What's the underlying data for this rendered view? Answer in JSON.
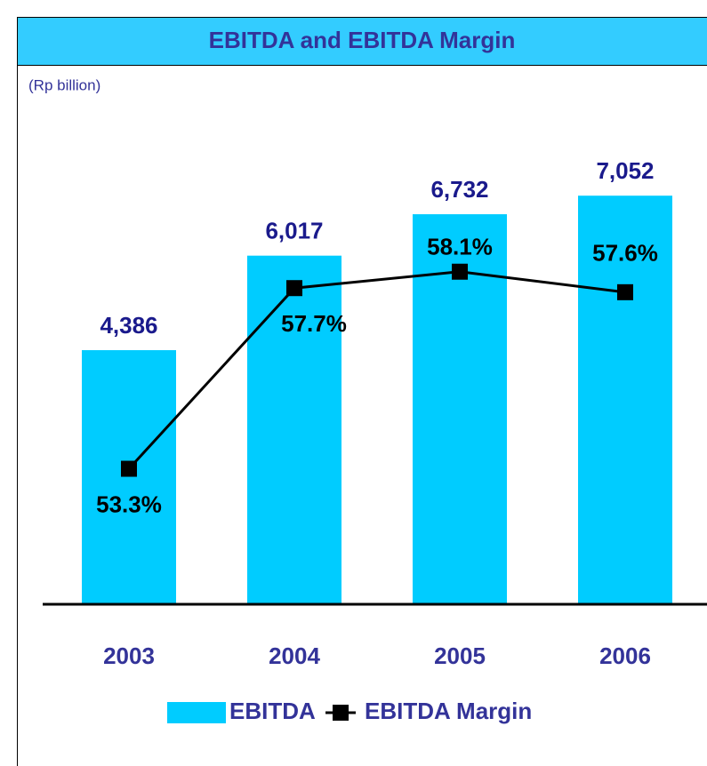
{
  "chart_data": {
    "type": "bar",
    "title": "EBITDA and EBITDA Margin",
    "subtitle": "(Rp billion)",
    "categories": [
      "2003",
      "2004",
      "2005",
      "2006"
    ],
    "ylim": [
      0,
      9000
    ],
    "y2lim": [
      50,
      62.7
    ],
    "series": [
      {
        "name": "EBITDA",
        "type": "bar",
        "color": "#00ccff",
        "values": [
          4386,
          6017,
          6732,
          7052
        ],
        "value_labels": [
          "4,386",
          "6,017",
          "6,732",
          "7,052"
        ]
      },
      {
        "name": "EBITDA Margin",
        "type": "line",
        "axis": "y2",
        "color": "#000000",
        "values": [
          53.3,
          57.7,
          58.1,
          57.6
        ],
        "value_labels": [
          "53.3%",
          "57.7%",
          "58.1%",
          "57.6%"
        ]
      }
    ],
    "legend": "bottom"
  }
}
